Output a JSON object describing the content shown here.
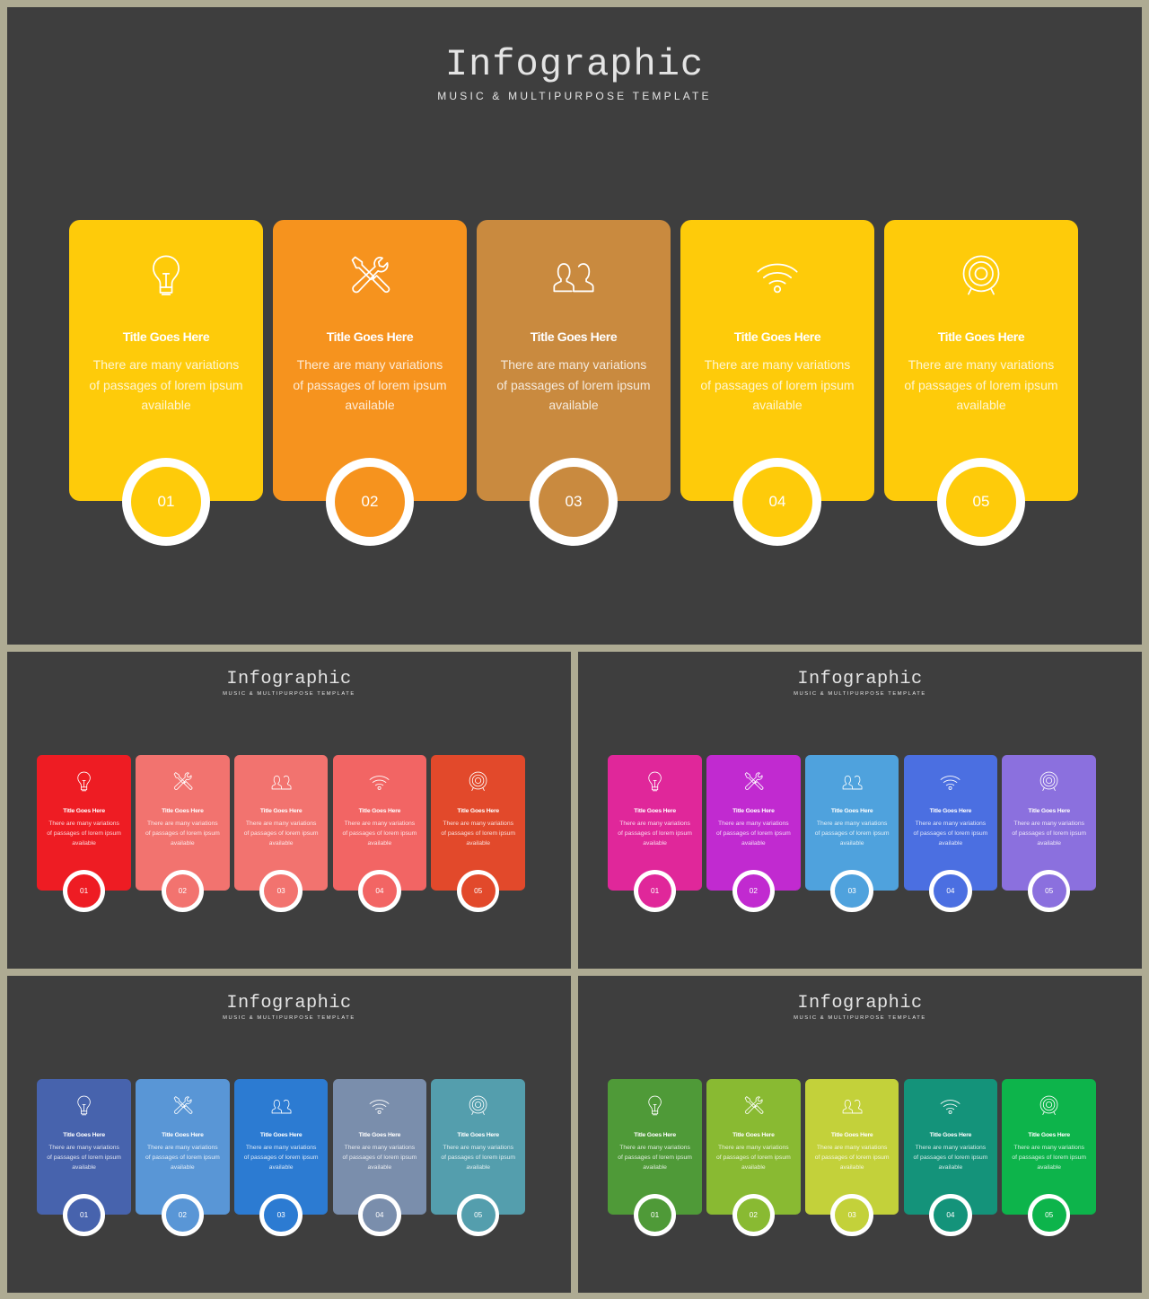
{
  "slides": [
    {
      "title": "Infographic",
      "subtitle": "MUSIC & MULTIPURPOSE TEMPLATE",
      "colors": [
        "#fecb0a",
        "#f6931e",
        "#c98a3f",
        "#fecb0a",
        "#fecb0a"
      ],
      "cards": [
        {
          "icon": "lightbulb-icon",
          "title": "Title Goes Here",
          "text": "There are many variations of passages of lorem ipsum available",
          "number": "01"
        },
        {
          "icon": "tools-icon",
          "title": "Title Goes Here",
          "text": "There are many variations of passages of lorem ipsum available",
          "number": "02"
        },
        {
          "icon": "users-icon",
          "title": "Title Goes Here",
          "text": "There are many variations of passages of lorem ipsum available",
          "number": "03"
        },
        {
          "icon": "wifi-icon",
          "title": "Title Goes Here",
          "text": "There are many variations of passages of lorem ipsum available",
          "number": "04"
        },
        {
          "icon": "target-icon",
          "title": "Title Goes Here",
          "text": "There are many variations of passages of lorem ipsum available",
          "number": "05"
        }
      ]
    },
    {
      "title": "Infographic",
      "subtitle": "MUSIC & MULTIPURPOSE TEMPLATE",
      "colors": [
        "#ee1c23",
        "#f2736f",
        "#f2736f",
        "#f26564",
        "#e2492b"
      ],
      "cards": [
        {
          "icon": "lightbulb-icon",
          "title": "Title Goes Here",
          "text": "There are many variations of passages of lorem ipsum available",
          "number": "01"
        },
        {
          "icon": "tools-icon",
          "title": "Title Goes Here",
          "text": "There are many variations of passages of lorem ipsum available",
          "number": "02"
        },
        {
          "icon": "users-icon",
          "title": "Title Goes Here",
          "text": "There are many variations of passages of lorem ipsum available",
          "number": "03"
        },
        {
          "icon": "wifi-icon",
          "title": "Title Goes Here",
          "text": "There are many variations of passages of lorem ipsum available",
          "number": "04"
        },
        {
          "icon": "target-icon",
          "title": "Title Goes Here",
          "text": "There are many variations of passages of lorem ipsum available",
          "number": "05"
        }
      ]
    },
    {
      "title": "Infographic",
      "subtitle": "MUSIC & MULTIPURPOSE TEMPLATE",
      "colors": [
        "#e0279a",
        "#c12ad0",
        "#4fa2dd",
        "#4b6fe1",
        "#8b70de"
      ],
      "cards": [
        {
          "icon": "lightbulb-icon",
          "title": "Title Goes Here",
          "text": "There are many variations of passages of lorem ipsum available",
          "number": "01"
        },
        {
          "icon": "tools-icon",
          "title": "Title Goes Here",
          "text": "There are many variations of passages of lorem ipsum available",
          "number": "02"
        },
        {
          "icon": "users-icon",
          "title": "Title Goes Here",
          "text": "There are many variations of passages of lorem ipsum available",
          "number": "03"
        },
        {
          "icon": "wifi-icon",
          "title": "Title Goes Here",
          "text": "There are many variations of passages of lorem ipsum available",
          "number": "04"
        },
        {
          "icon": "target-icon",
          "title": "Title Goes Here",
          "text": "There are many variations of passages of lorem ipsum available",
          "number": "05"
        }
      ]
    },
    {
      "title": "Infographic",
      "subtitle": "MUSIC & MULTIPURPOSE TEMPLATE",
      "colors": [
        "#4763ad",
        "#5996d6",
        "#2c7bd2",
        "#7a8eac",
        "#549ead"
      ],
      "cards": [
        {
          "icon": "lightbulb-icon",
          "title": "Title Goes Here",
          "text": "There are many variations of passages of lorem ipsum available",
          "number": "01"
        },
        {
          "icon": "tools-icon",
          "title": "Title Goes Here",
          "text": "There are many variations of passages of lorem ipsum available",
          "number": "02"
        },
        {
          "icon": "users-icon",
          "title": "Title Goes Here",
          "text": "There are many variations of passages of lorem ipsum available",
          "number": "03"
        },
        {
          "icon": "wifi-icon",
          "title": "Title Goes Here",
          "text": "There are many variations of passages of lorem ipsum available",
          "number": "04"
        },
        {
          "icon": "target-icon",
          "title": "Title Goes Here",
          "text": "There are many variations of passages of lorem ipsum available",
          "number": "05"
        }
      ]
    },
    {
      "title": "Infographic",
      "subtitle": "MUSIC & MULTIPURPOSE TEMPLATE",
      "colors": [
        "#4f9a38",
        "#89ba32",
        "#c3d13a",
        "#14937a",
        "#0db44b"
      ],
      "cards": [
        {
          "icon": "lightbulb-icon",
          "title": "Title Goes Here",
          "text": "There are many variations of passages of lorem ipsum available",
          "number": "01"
        },
        {
          "icon": "tools-icon",
          "title": "Title Goes Here",
          "text": "There are many variations of passages of lorem ipsum available",
          "number": "02"
        },
        {
          "icon": "users-icon",
          "title": "Title Goes Here",
          "text": "There are many variations of passages of lorem ipsum available",
          "number": "03"
        },
        {
          "icon": "wifi-icon",
          "title": "Title Goes Here",
          "text": "There are many variations of passages of lorem ipsum available",
          "number": "04"
        },
        {
          "icon": "target-icon",
          "title": "Title Goes Here",
          "text": "There are many variations of passages of lorem ipsum available",
          "number": "05"
        }
      ]
    }
  ]
}
